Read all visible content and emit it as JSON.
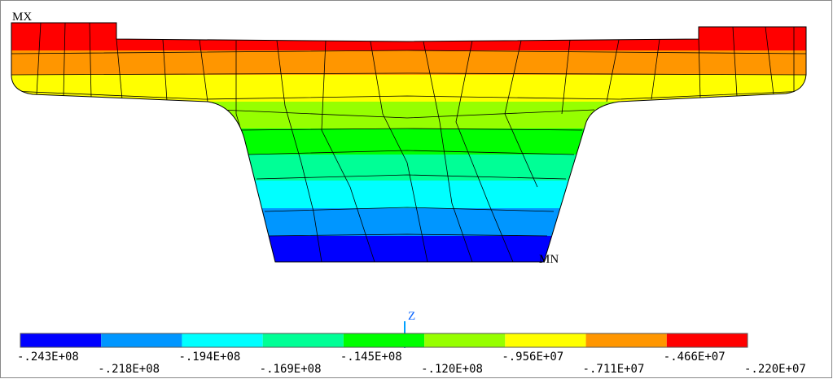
{
  "legend": {
    "labels": [
      "-.243E+08",
      "-.218E+08",
      "-.194E+08",
      "-.169E+08",
      "-.145E+08",
      "-.120E+08",
      "-.956E+07",
      "-.711E+07",
      "-.466E+07",
      "-.220E+07"
    ],
    "colors": [
      "#0000ff",
      "#0096ff",
      "#00ffff",
      "#00ff96",
      "#00ff00",
      "#96ff00",
      "#ffff00",
      "#ff9600",
      "#ff0000"
    ]
  },
  "annotations": {
    "max": "MX",
    "min": "MN",
    "axis": "Z"
  }
}
